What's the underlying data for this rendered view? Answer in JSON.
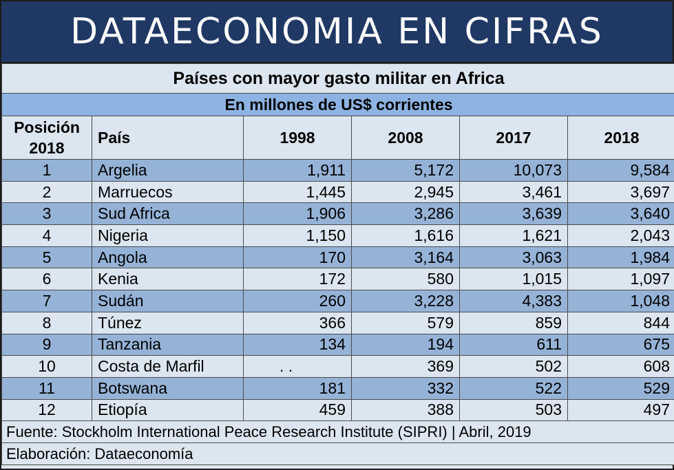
{
  "banner": "DATAECONOMIA EN CIFRAS",
  "title": "Países con mayor gasto militar en Africa",
  "subtitle": "En millones de US$ corrientes",
  "columns": {
    "position_line1": "Posición",
    "position_line2": "2018",
    "country": "País",
    "y1998": "1998",
    "y2008": "2008",
    "y2017": "2017",
    "y2018": "2018"
  },
  "rows": [
    {
      "pos": "1",
      "country": "Argelia",
      "y1998": "1,911",
      "y2008": "5,172",
      "y2017": "10,073",
      "y2018": "9,584"
    },
    {
      "pos": "2",
      "country": "Marruecos",
      "y1998": "1,445",
      "y2008": "2,945",
      "y2017": "3,461",
      "y2018": "3,697"
    },
    {
      "pos": "3",
      "country": "Sud Africa",
      "y1998": "1,906",
      "y2008": "3,286",
      "y2017": "3,639",
      "y2018": "3,640"
    },
    {
      "pos": "4",
      "country": "Nigeria",
      "y1998": "1,150",
      "y2008": "1,616",
      "y2017": "1,621",
      "y2018": "2,043"
    },
    {
      "pos": "5",
      "country": "Angola",
      "y1998": "170",
      "y2008": "3,164",
      "y2017": "3,063",
      "y2018": "1,984"
    },
    {
      "pos": "6",
      "country": "Kenia",
      "y1998": "172",
      "y2008": "580",
      "y2017": "1,015",
      "y2018": "1,097"
    },
    {
      "pos": "7",
      "country": "Sudán",
      "y1998": "260",
      "y2008": "3,228",
      "y2017": "4,383",
      "y2018": "1,048"
    },
    {
      "pos": "8",
      "country": "Túnez",
      "y1998": "366",
      "y2008": "579",
      "y2017": "859",
      "y2018": "844"
    },
    {
      "pos": "9",
      "country": "Tanzania",
      "y1998": "134",
      "y2008": "194",
      "y2017": "611",
      "y2018": "675"
    },
    {
      "pos": "10",
      "country": "Costa de Marfil",
      "y1998": ". .",
      "y2008": "369",
      "y2017": "502",
      "y2018": "608"
    },
    {
      "pos": "11",
      "country": "Botswana",
      "y1998": "181",
      "y2008": "332",
      "y2017": "522",
      "y2018": "529"
    },
    {
      "pos": "12",
      "country": "Etiopía",
      "y1998": "459",
      "y2008": "388",
      "y2017": "503",
      "y2018": "497"
    }
  ],
  "footer": {
    "source": "Fuente: Stockholm International Peace Research Institute (SIPRI) | Abril, 2019",
    "credit": "Elaboración: Dataeconomía"
  }
}
